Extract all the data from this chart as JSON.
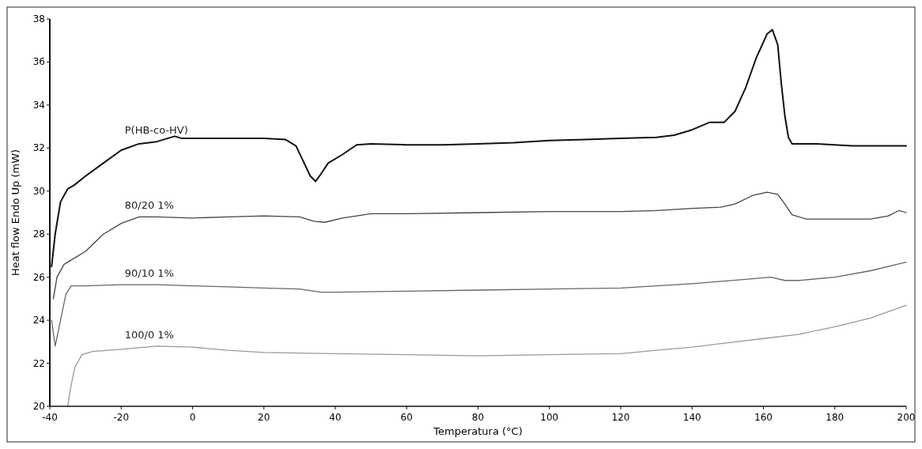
{
  "chart_data": {
    "type": "line",
    "xlabel": "Temperatura (°C)",
    "ylabel": "Heat flow Endo Up (mW)",
    "xlim": [
      -40,
      200
    ],
    "ylim": [
      20,
      38
    ],
    "xticks": [
      -40,
      -20,
      0,
      20,
      40,
      60,
      80,
      100,
      120,
      140,
      160,
      180,
      200
    ],
    "yticks": [
      20,
      22,
      24,
      26,
      28,
      30,
      32,
      34,
      36,
      38
    ],
    "grid": false,
    "marker": "none",
    "line_style": "solid",
    "series": [
      {
        "name": "P(HB-co-HV)",
        "color": "#111111",
        "x": [
          -39.5,
          -38.5,
          -37,
          -35,
          -33,
          -30,
          -25,
          -20,
          -15,
          -10,
          -5,
          -3,
          0,
          10,
          20,
          26,
          29,
          31,
          33,
          34.5,
          36,
          38,
          42,
          46,
          50,
          60,
          70,
          80,
          90,
          100,
          110,
          120,
          130,
          135,
          140,
          145,
          149,
          152,
          155,
          158,
          161,
          162.5,
          164,
          165,
          166,
          167,
          168,
          175,
          185,
          200
        ],
        "values": [
          26.5,
          28,
          29.5,
          30.1,
          30.3,
          30.7,
          31.3,
          31.9,
          32.2,
          32.3,
          32.55,
          32.45,
          32.45,
          32.45,
          32.45,
          32.4,
          32.1,
          31.4,
          30.7,
          30.45,
          30.8,
          31.3,
          31.7,
          32.15,
          32.2,
          32.15,
          32.15,
          32.2,
          32.25,
          32.35,
          32.4,
          32.45,
          32.5,
          32.6,
          32.85,
          33.2,
          33.2,
          33.7,
          34.8,
          36.2,
          37.3,
          37.5,
          36.8,
          35,
          33.5,
          32.5,
          32.2,
          32.2,
          32.1,
          32.1
        ]
      },
      {
        "name": "80/20 1%",
        "color": "#444444",
        "x": [
          -39,
          -38,
          -36,
          -34,
          -30,
          -25,
          -20,
          -15,
          -10,
          0,
          10,
          20,
          30,
          34,
          37,
          42,
          50,
          60,
          80,
          100,
          120,
          130,
          140,
          148,
          152,
          157,
          161,
          164,
          166,
          168,
          172,
          180,
          190,
          195,
          198,
          200
        ],
        "values": [
          25,
          26,
          26.6,
          26.8,
          27.2,
          28,
          28.5,
          28.8,
          28.8,
          28.75,
          28.8,
          28.85,
          28.8,
          28.6,
          28.55,
          28.75,
          28.95,
          28.95,
          29,
          29.05,
          29.05,
          29.1,
          29.2,
          29.25,
          29.4,
          29.8,
          29.95,
          29.85,
          29.4,
          28.9,
          28.7,
          28.7,
          28.7,
          28.85,
          29.1,
          29
        ]
      },
      {
        "name": "90/10 1%",
        "color": "#666666",
        "x": [
          -39.5,
          -38.5,
          -37,
          -35.5,
          -34,
          -30,
          -20,
          -10,
          0,
          10,
          20,
          30,
          36,
          40,
          60,
          80,
          100,
          120,
          140,
          155,
          162,
          166,
          170,
          180,
          190,
          200
        ],
        "values": [
          24,
          22.8,
          24,
          25.2,
          25.6,
          25.6,
          25.65,
          25.65,
          25.6,
          25.55,
          25.5,
          25.45,
          25.3,
          25.3,
          25.35,
          25.4,
          25.45,
          25.5,
          25.7,
          25.9,
          26,
          25.85,
          25.85,
          26,
          26.3,
          26.7
        ]
      },
      {
        "name": "100/0 1%",
        "color": "#999999",
        "x": [
          -35,
          -34,
          -33,
          -31,
          -28,
          -20,
          -10,
          0,
          10,
          20,
          40,
          60,
          80,
          100,
          120,
          130,
          140,
          150,
          160,
          170,
          180,
          190,
          200
        ],
        "values": [
          20,
          21,
          21.8,
          22.4,
          22.55,
          22.65,
          22.8,
          22.75,
          22.6,
          22.5,
          22.45,
          22.4,
          22.35,
          22.4,
          22.45,
          22.6,
          22.75,
          22.95,
          23.15,
          23.35,
          23.7,
          24.1,
          24.7
        ]
      }
    ]
  }
}
